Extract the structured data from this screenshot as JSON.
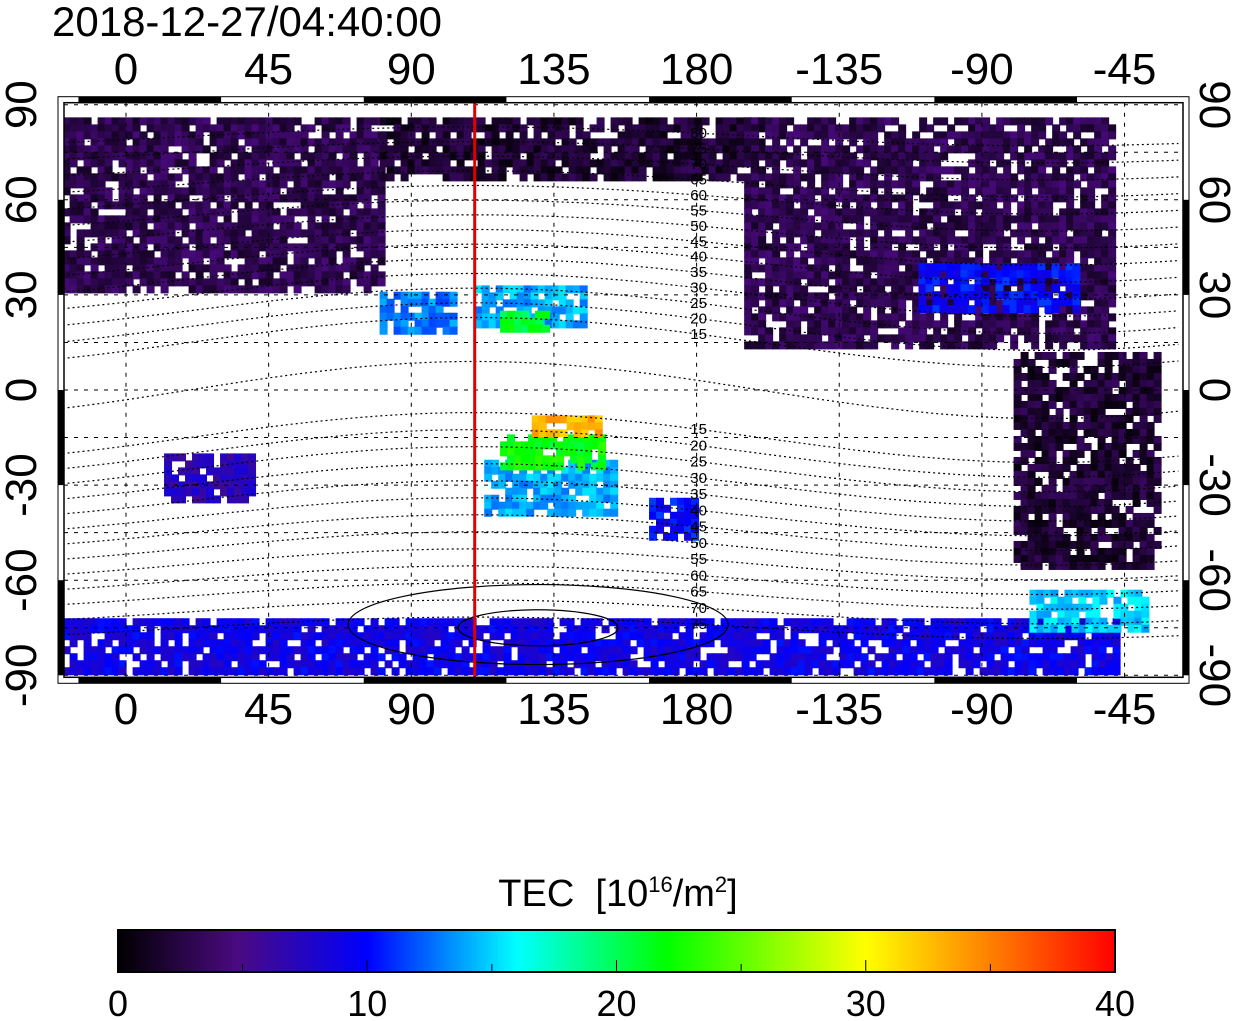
{
  "title": "2018-12-27/04:40:00",
  "map": {
    "lon_range": [
      -20,
      334
    ],
    "lat_range": [
      -90,
      90
    ],
    "x_ticks": [
      "0",
      "45",
      "90",
      "135",
      "180",
      "-135",
      "-90",
      "-45"
    ],
    "x_tick_values": [
      0,
      45,
      90,
      135,
      180,
      225,
      270,
      315
    ],
    "y_ticks": [
      "90",
      "60",
      "30",
      "0",
      "-30",
      "-60",
      "-90"
    ],
    "y_tick_values": [
      90,
      60,
      30,
      0,
      -30,
      -60,
      -90
    ],
    "marker_longitude": 110,
    "marker_color": "#e00000",
    "contour_labels_north": [
      "80",
      "75",
      "70",
      "65",
      "60",
      "55",
      "50",
      "45",
      "40",
      "35",
      "30",
      "25",
      "20",
      "15"
    ],
    "contour_values_north": [
      80,
      75,
      70,
      65,
      60,
      55,
      50,
      45,
      40,
      35,
      30,
      25,
      20,
      15
    ],
    "contour_labels_south": [
      "15",
      "20",
      "25",
      "30",
      "35",
      "40",
      "45",
      "50",
      "55",
      "60",
      "65",
      "70",
      "75"
    ],
    "contour_values_south": [
      -15,
      -20,
      -25,
      -30,
      -35,
      -40,
      -45,
      -50,
      -55,
      -60,
      -65,
      -70,
      -75
    ],
    "regions": [
      {
        "name": "europe-asia-north",
        "lon": [
          -20,
          80
        ],
        "lat": [
          32,
          86
        ],
        "tec": 3
      },
      {
        "name": "siberia-north",
        "lon": [
          80,
          200
        ],
        "lat": [
          68,
          86
        ],
        "tec": 2
      },
      {
        "name": "north-america",
        "lon": [
          195,
          312
        ],
        "lat": [
          15,
          86
        ],
        "tec": 3
      },
      {
        "name": "north-america-east",
        "lon": [
          250,
          300
        ],
        "lat": [
          25,
          40
        ],
        "tec": 10
      },
      {
        "name": "south-america",
        "lon": [
          280,
          325
        ],
        "lat": [
          -55,
          12
        ],
        "tec": 2
      },
      {
        "name": "africa-south",
        "lon": [
          12,
          40
        ],
        "lat": [
          -35,
          -20
        ],
        "tec": 7
      },
      {
        "name": "australia",
        "lon": [
          113,
          153
        ],
        "lat": [
          -38,
          -22
        ],
        "tec": 14
      },
      {
        "name": "australia-north",
        "lon": [
          118,
          150
        ],
        "lat": [
          -25,
          -14
        ],
        "tec": 22
      },
      {
        "name": "new-guinea-hotspot",
        "lon": [
          128,
          150
        ],
        "lat": [
          -13,
          -8
        ],
        "tec": 33
      },
      {
        "name": "east-asia",
        "lon": [
          110,
          145
        ],
        "lat": [
          20,
          33
        ],
        "tec": 14
      },
      {
        "name": "east-asia-green",
        "lon": [
          118,
          132
        ],
        "lat": [
          20,
          25
        ],
        "tec": 21
      },
      {
        "name": "india",
        "lon": [
          80,
          103
        ],
        "lat": [
          18,
          31
        ],
        "tec": 13
      },
      {
        "name": "new-zealand",
        "lon": [
          165,
          180
        ],
        "lat": [
          -47,
          -34
        ],
        "tec": 10
      },
      {
        "name": "antarctica",
        "lon": [
          -20,
          312
        ],
        "lat": [
          -88,
          -72
        ],
        "tec": 9
      },
      {
        "name": "antarctic-peninsula",
        "lon": [
          285,
          322
        ],
        "lat": [
          -75,
          -63
        ],
        "tec": 15
      }
    ]
  },
  "colorbar": {
    "label_main": "TEC  [10",
    "label_sup1": "16",
    "label_mid": "/m",
    "label_sup2": "2",
    "label_end": "]",
    "min": 0,
    "max": 40,
    "ticks": [
      "0",
      "10",
      "20",
      "30",
      "40"
    ],
    "stops": [
      "#000000",
      "#4a0a80",
      "#0000ff",
      "#00ffff",
      "#00ff00",
      "#ffff00",
      "#ff0000"
    ]
  }
}
